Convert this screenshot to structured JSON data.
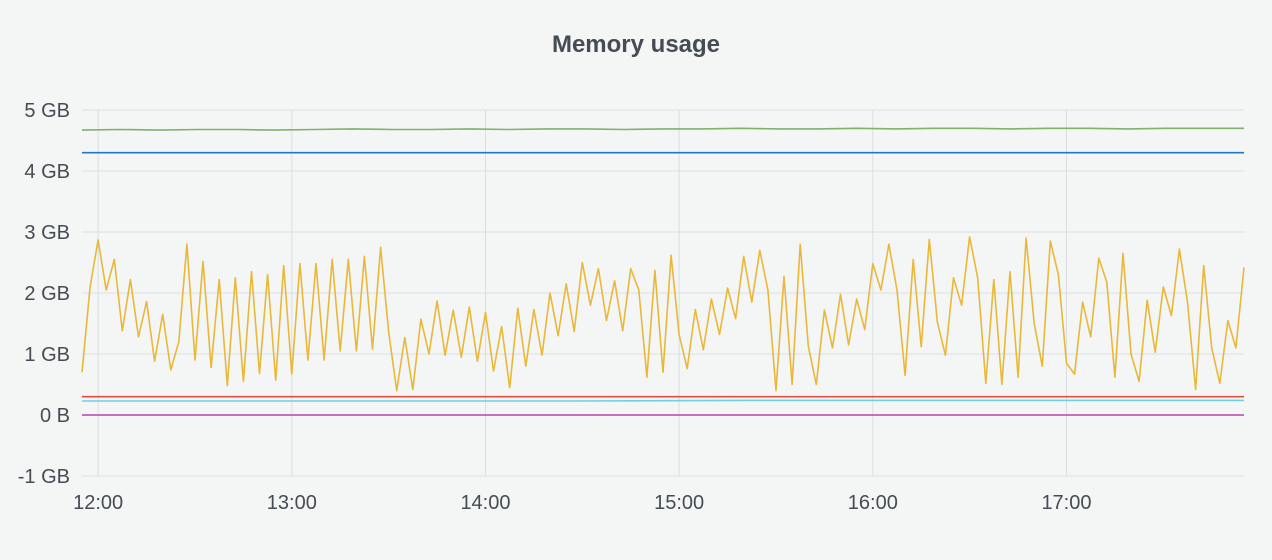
{
  "panel": {
    "title": "Memory usage"
  },
  "chart_data": {
    "type": "line",
    "title": "Memory usage",
    "xlabel": "",
    "ylabel": "",
    "x_ticks": [
      "12:00",
      "13:00",
      "14:00",
      "15:00",
      "16:00",
      "17:00"
    ],
    "y_ticks": [
      "-1 GB",
      "0 B",
      "1 GB",
      "2 GB",
      "3 GB",
      "4 GB",
      "5 GB"
    ],
    "y_tick_values": [
      -1,
      0,
      1,
      2,
      3,
      4,
      5
    ],
    "ylim": [
      -1,
      5
    ],
    "xlim": [
      "11:55",
      "17:55"
    ],
    "grid": true,
    "legend": "none",
    "series": [
      {
        "color": "#7eb26d",
        "x_start": "11:55",
        "x_end": "17:55",
        "values": [
          4.67,
          4.68,
          4.67,
          4.68,
          4.68,
          4.67,
          4.68,
          4.69,
          4.68,
          4.68,
          4.69,
          4.68,
          4.69,
          4.69,
          4.68,
          4.69,
          4.69,
          4.7,
          4.69,
          4.69,
          4.7,
          4.69,
          4.7,
          4.7,
          4.69,
          4.7,
          4.7,
          4.69,
          4.7,
          4.7,
          4.7
        ]
      },
      {
        "color": "#1f78c1",
        "x_start": "11:55",
        "x_end": "17:55",
        "values": [
          4.3,
          4.3
        ]
      },
      {
        "color": "#eab839",
        "x_start": "11:55",
        "x_end": "17:55",
        "values": [
          0.7,
          2.1,
          2.87,
          2.05,
          2.55,
          1.38,
          2.22,
          1.28,
          1.86,
          0.88,
          1.65,
          0.74,
          1.2,
          2.8,
          0.9,
          2.52,
          0.78,
          2.22,
          0.48,
          2.25,
          0.55,
          2.35,
          0.68,
          2.3,
          0.57,
          2.45,
          0.67,
          2.48,
          0.9,
          2.48,
          0.9,
          2.55,
          1.05,
          2.55,
          1.05,
          2.6,
          1.08,
          2.75,
          1.37,
          0.4,
          1.27,
          0.42,
          1.57,
          1.0,
          1.87,
          0.98,
          1.72,
          0.95,
          1.77,
          0.88,
          1.68,
          0.72,
          1.45,
          0.45,
          1.75,
          0.8,
          1.73,
          0.98,
          2.0,
          1.3,
          2.15,
          1.37,
          2.5,
          1.8,
          2.4,
          1.55,
          2.2,
          1.38,
          2.4,
          2.05,
          0.62,
          2.37,
          0.7,
          2.62,
          1.32,
          0.76,
          1.73,
          1.07,
          1.9,
          1.32,
          2.08,
          1.58,
          2.6,
          1.85,
          2.7,
          2.05,
          0.4,
          2.27,
          0.5,
          2.8,
          1.13,
          0.5,
          1.72,
          1.1,
          1.98,
          1.15,
          1.9,
          1.4,
          2.48,
          2.05,
          2.8,
          2.05,
          0.65,
          2.55,
          1.12,
          2.88,
          1.52,
          0.98,
          2.25,
          1.8,
          2.92,
          2.25,
          0.52,
          2.22,
          0.5,
          2.35,
          0.62,
          2.9,
          1.5,
          0.8,
          2.85,
          2.3,
          0.85,
          0.67,
          1.85,
          1.28,
          2.57,
          2.18,
          0.62,
          2.65,
          1.0,
          0.55,
          1.88,
          1.03,
          2.1,
          1.63,
          2.72,
          1.85,
          0.42,
          2.45,
          1.1,
          0.52,
          1.55,
          1.1,
          2.42
        ]
      },
      {
        "color": "#e24d42",
        "x_start": "11:55",
        "x_end": "17:55",
        "values": [
          0.3,
          0.3
        ]
      },
      {
        "color": "#6ed0e0",
        "x_start": "11:55",
        "x_end": "17:55",
        "values": [
          0.23,
          0.23,
          0.23,
          0.23,
          0.24,
          0.24,
          0.24,
          0.24
        ]
      },
      {
        "color": "#ba43a9",
        "x_start": "11:55",
        "x_end": "17:55",
        "values": [
          0.0,
          0.0
        ]
      }
    ]
  }
}
